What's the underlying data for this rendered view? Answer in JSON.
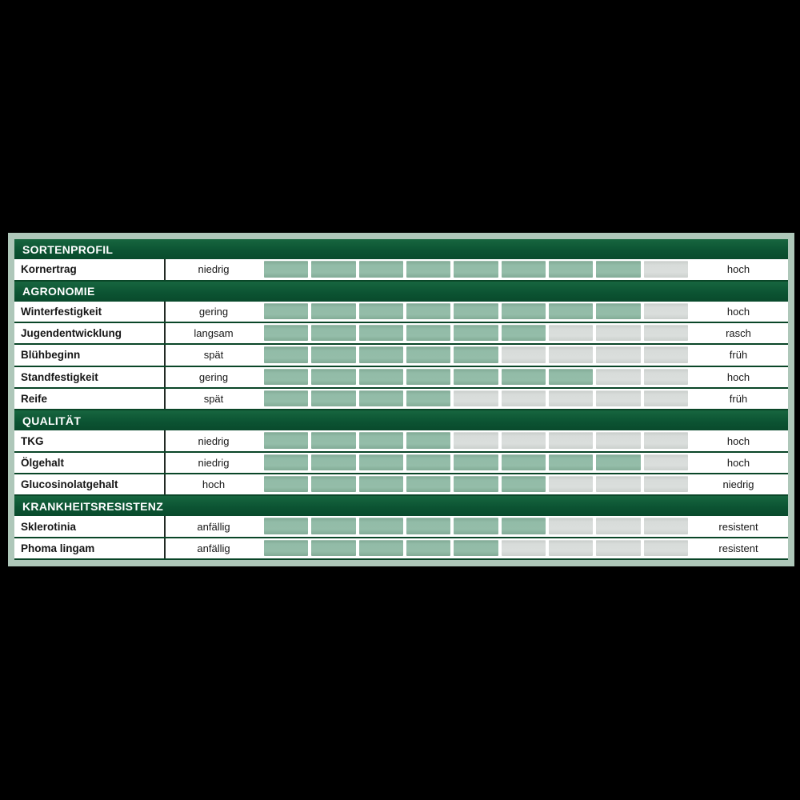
{
  "colors": {
    "background": "#000000",
    "frame": "#aec7b9",
    "section_bar": "#0c5433",
    "section_text": "#ffffff",
    "row_background": "#ffffff",
    "row_divider": "#0a4628",
    "cell_filled": "#94bda9",
    "cell_empty": "#dadedc",
    "text": "#161616"
  },
  "chart_data": {
    "type": "bar",
    "title": "Sortenprofil",
    "scale_cells": 9,
    "legend_position": "none",
    "sections": [
      {
        "label": "SORTENPROFIL",
        "rows": [
          {
            "name": "Kornertrag",
            "low": "niedrig",
            "filled": 8,
            "high": "hoch"
          }
        ]
      },
      {
        "label": "AGRONOMIE",
        "rows": [
          {
            "name": "Winterfestigkeit",
            "low": "gering",
            "filled": 8,
            "high": "hoch"
          },
          {
            "name": "Jugendentwicklung",
            "low": "langsam",
            "filled": 6,
            "high": "rasch"
          },
          {
            "name": "Blühbeginn",
            "low": "spät",
            "filled": 5,
            "high": "früh"
          },
          {
            "name": "Standfestigkeit",
            "low": "gering",
            "filled": 7,
            "high": "hoch"
          },
          {
            "name": "Reife",
            "low": "spät",
            "filled": 4,
            "high": "früh"
          }
        ]
      },
      {
        "label": "QUALITÄT",
        "rows": [
          {
            "name": "TKG",
            "low": "niedrig",
            "filled": 4,
            "high": "hoch"
          },
          {
            "name": "Ölgehalt",
            "low": "niedrig",
            "filled": 8,
            "high": "hoch"
          },
          {
            "name": "Glucosinolatgehalt",
            "low": "hoch",
            "filled": 6,
            "high": "niedrig"
          }
        ]
      },
      {
        "label": "KRANKHEITSRESISTENZ",
        "rows": [
          {
            "name": "Sklerotinia",
            "low": "anfällig",
            "filled": 6,
            "high": "resistent"
          },
          {
            "name": "Phoma lingam",
            "low": "anfällig",
            "filled": 5,
            "high": "resistent"
          }
        ]
      }
    ]
  }
}
